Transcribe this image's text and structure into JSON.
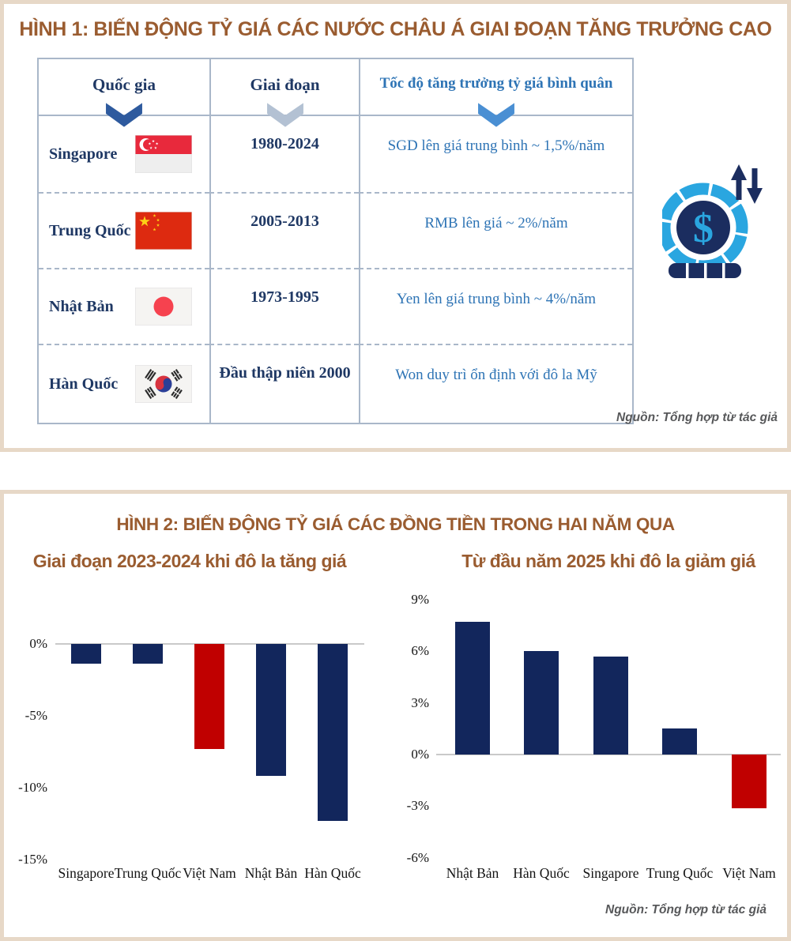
{
  "colors": {
    "title_brown": "#9a5c30",
    "navy": "#12265c",
    "red": "#c00000",
    "table_navy_text": "#1f3864",
    "table_blue_text": "#2e74b5",
    "table_border": "#a9b7c9",
    "chevron_col1": "#2e5a9e",
    "chevron_col2": "#b3c1d3",
    "chevron_col3": "#4a8fd3",
    "panel_border": "#e7d8c7"
  },
  "figure1": {
    "title": "HÌNH 1: BIẾN ĐỘNG TỶ GIÁ CÁC NƯỚC CHÂU Á GIAI ĐOẠN TĂNG TRƯỞNG CAO",
    "table": {
      "headers": [
        "Quốc gia",
        "Giai đoạn",
        "Tốc độ tăng trưởng tỷ giá bình quân"
      ],
      "rows": [
        {
          "country": "Singapore",
          "flag": "singapore-flag",
          "period": "1980-2024",
          "growth": "SGD lên giá trung bình ~ 1,5%/năm"
        },
        {
          "country": "Trung Quốc",
          "flag": "china-flag",
          "period": "2005-2013",
          "growth": "RMB lên giá ~ 2%/năm"
        },
        {
          "country": "Nhật Bản",
          "flag": "japan-flag",
          "period": "1973-1995",
          "growth": "Yen lên giá trung bình ~ 4%/năm"
        },
        {
          "country": "Hàn Quốc",
          "flag": "south-korea-flag",
          "period": "Đầu thập niên 2000",
          "growth": "Won duy trì ổn định với đô la Mỹ"
        }
      ]
    },
    "decor_icon": "dollar-coin-with-up-down-arrows",
    "source": "Nguồn: Tổng hợp từ tác giả"
  },
  "figure2": {
    "title": "HÌNH 2: BIẾN ĐỘNG TỶ GIÁ CÁC ĐỒNG TIỀN TRONG HAI NĂM QUA",
    "source": "Nguồn: Tổng hợp từ tác giả"
  },
  "chart_data": [
    {
      "type": "bar",
      "title": "Giai đoạn 2023-2024 khi đô la tăng giá",
      "categories": [
        "Singapore",
        "Trung Quốc",
        "Việt Nam",
        "Nhật Bản",
        "Hàn Quốc"
      ],
      "values": [
        -1.4,
        -1.4,
        -7.3,
        -9.2,
        -12.3
      ],
      "bar_colors": [
        "#12265c",
        "#12265c",
        "#c00000",
        "#12265c",
        "#12265c"
      ],
      "yticks": [
        0,
        -5,
        -10,
        -15
      ],
      "ytick_labels": [
        "0%",
        "-5%",
        "-10%",
        "-15%"
      ],
      "ylim": [
        -15,
        0
      ],
      "unit": "%",
      "grid": false,
      "legend": false
    },
    {
      "type": "bar",
      "title": "Từ đầu năm 2025 khi đô la giảm giá",
      "categories": [
        "Nhật Bản",
        "Hàn Quốc",
        "Singapore",
        "Trung Quốc",
        "Việt Nam"
      ],
      "values": [
        7.7,
        6.0,
        5.7,
        1.5,
        -3.1
      ],
      "bar_colors": [
        "#12265c",
        "#12265c",
        "#12265c",
        "#12265c",
        "#c00000"
      ],
      "yticks": [
        9,
        6,
        3,
        0,
        -3,
        -6
      ],
      "ytick_labels": [
        "9%",
        "6%",
        "3%",
        "0%",
        "-3%",
        "-6%"
      ],
      "ylim": [
        -6,
        9
      ],
      "unit": "%",
      "grid": false,
      "legend": false
    }
  ]
}
